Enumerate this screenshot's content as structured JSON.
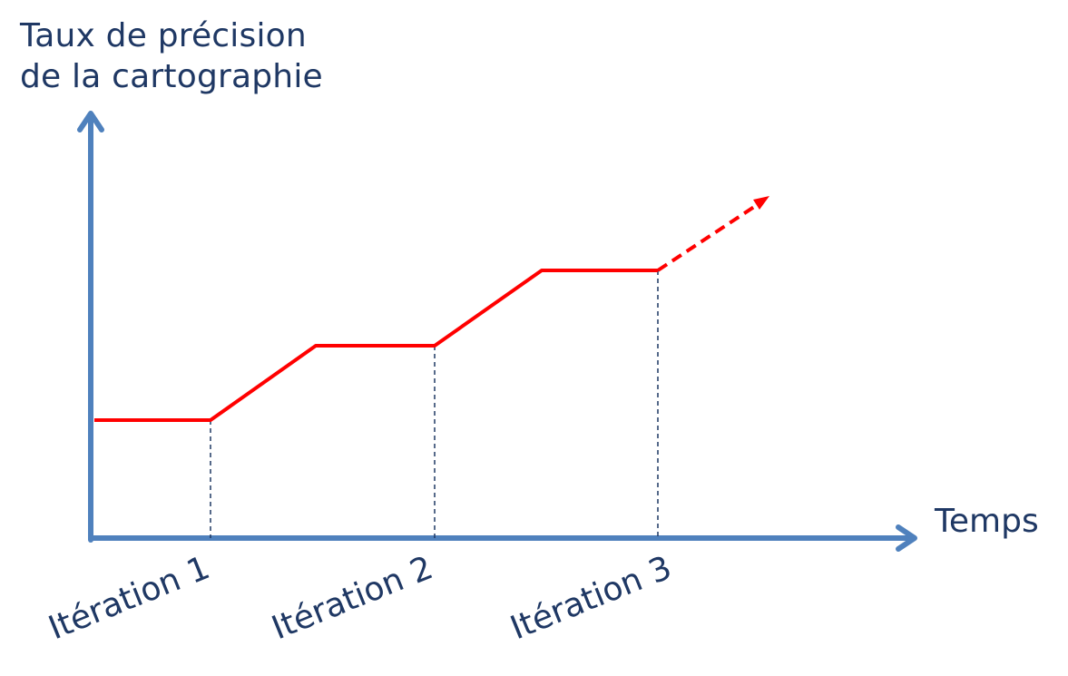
{
  "colors": {
    "axis": "#4f81bd",
    "text": "#1f3864",
    "line": "#ff0000",
    "guide": "#1f3864"
  },
  "title": {
    "line1": "Taux de précision",
    "line2": "de la cartographie"
  },
  "x_axis_label": "Temps",
  "iterations": [
    "Itération 1",
    "Itération 2",
    "Itération 3"
  ],
  "trend": {
    "description_type": "stepped increase",
    "continues_dashed": true
  }
}
